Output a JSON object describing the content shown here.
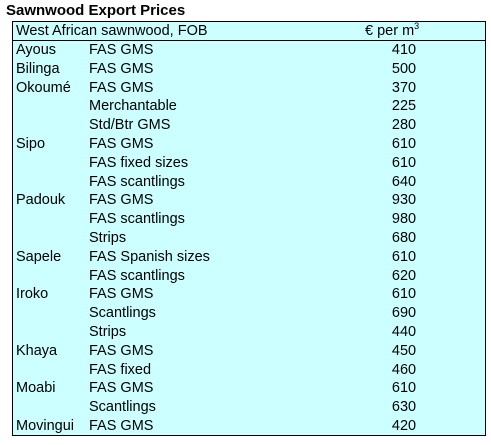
{
  "title": "Sawnwood Export Prices",
  "table": {
    "header_left": "West African sawnwood, FOB",
    "header_unit": "€ per m",
    "header_unit_exp": "3",
    "rows": [
      {
        "species": "Ayous",
        "grade": "FAS GMS",
        "price": "410"
      },
      {
        "species": "Bilinga",
        "grade": "FAS GMS",
        "price": "500"
      },
      {
        "species": "Okoumé",
        "grade": "FAS GMS",
        "price": "370"
      },
      {
        "species": "",
        "grade": "Merchantable",
        "price": "225"
      },
      {
        "species": "",
        "grade": "Std/Btr GMS",
        "price": "280"
      },
      {
        "species": "Sipo",
        "grade": "FAS GMS",
        "price": "610"
      },
      {
        "species": "",
        "grade": "FAS fixed sizes",
        "price": "610"
      },
      {
        "species": "",
        "grade": "FAS scantlings",
        "price": "640"
      },
      {
        "species": "Padouk",
        "grade": "FAS GMS",
        "price": "930"
      },
      {
        "species": "",
        "grade": "FAS scantlings",
        "price": "980"
      },
      {
        "species": "",
        "grade": "Strips",
        "price": "680"
      },
      {
        "species": "Sapele",
        "grade": "FAS Spanish sizes",
        "price": "610"
      },
      {
        "species": "",
        "grade": "FAS scantlings",
        "price": "620"
      },
      {
        "species": "Iroko",
        "grade": "FAS GMS",
        "price": "610"
      },
      {
        "species": "",
        "grade": "Scantlings",
        "price": "690"
      },
      {
        "species": "",
        "grade": "Strips",
        "price": "440"
      },
      {
        "species": "Khaya",
        "grade": "FAS GMS",
        "price": "450"
      },
      {
        "species": "",
        "grade": "FAS fixed",
        "price": "460"
      },
      {
        "species": "Moabi",
        "grade": "FAS GMS",
        "price": "610"
      },
      {
        "species": "",
        "grade": "Scantlings",
        "price": "630"
      },
      {
        "species": "Movingui",
        "grade": "FAS GMS",
        "price": "420"
      }
    ]
  },
  "colors": {
    "table_background": "#ccffff",
    "border": "#000000"
  }
}
